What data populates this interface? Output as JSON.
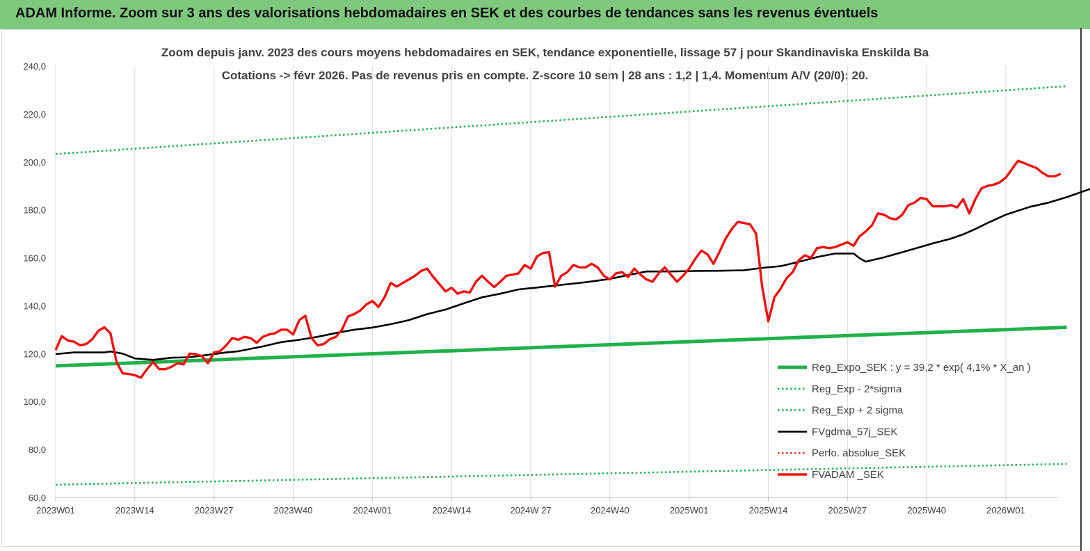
{
  "banner": {
    "title": "ADAM Informe. Zoom sur 3 ans des valorisations hebdomadaires en SEK et des courbes de tendances sans les revenus éventuels"
  },
  "chart_data": {
    "type": "line",
    "title": "Zoom depuis janv. 2023 des cours moyens hebdomadaires en SEK, tendance exponentielle, lissage 57 j pour Skandinaviska Enskilda Ba",
    "subtitle": "Cotations -> févr 2026. Pas de revenus pris en compte. Z-score 10 sem | 28 ans : 1,2 | 1,4. Momentum A/V (20/0): 20.",
    "xlabel": "",
    "ylabel": "",
    "ylim": [
      60,
      240
    ],
    "yticks": [
      "60,0",
      "80,0",
      "100,0",
      "120,0",
      "140,0",
      "160,0",
      "180,0",
      "200,0",
      "220,0",
      "240,0"
    ],
    "xticks": [
      "2023W01",
      "2023W14",
      "2023W27",
      "2023W40",
      "2024W01",
      "2024W14",
      "2024W 27",
      "2024W40",
      "2025W01",
      "2025W14",
      "2025W27",
      "2025W40",
      "2026W01"
    ],
    "weeks_total": 166,
    "grid": "vertical",
    "legend_position": "right",
    "series": [
      {
        "name": "Reg_Expo_SEK : y = 39,2 * exp( 4,1% *  X_an )",
        "color": "#21b14b",
        "style": "thick",
        "values": [
          [
            0,
            114.9
          ],
          [
            166,
            131.0
          ]
        ]
      },
      {
        "name": "Reg_Exp - 2*sigma",
        "color": "#21b14b",
        "style": "dotted",
        "values": [
          [
            0,
            65.3
          ],
          [
            166,
            74.0
          ]
        ]
      },
      {
        "name": "Reg_Exp + 2 sigma",
        "color": "#21b14b",
        "style": "dotted",
        "values": [
          [
            0,
            203.3
          ],
          [
            166,
            231.6
          ]
        ]
      },
      {
        "name": "FVgdma_57j_SEK",
        "color": "#000000",
        "style": "solid",
        "values": [
          [
            0,
            119.8
          ],
          [
            3,
            120.5
          ],
          [
            6,
            120.5
          ],
          [
            7,
            120.5
          ],
          [
            8,
            120.5
          ],
          [
            9,
            120.9
          ],
          [
            11,
            120.0
          ],
          [
            13,
            118.0
          ],
          [
            16,
            117.4
          ],
          [
            19,
            118.3
          ],
          [
            22,
            118.5
          ],
          [
            25,
            119.5
          ],
          [
            28,
            120.5
          ],
          [
            30,
            121.0
          ],
          [
            32,
            122.0
          ],
          [
            34,
            123.0
          ],
          [
            37,
            124.8
          ],
          [
            40,
            125.8
          ],
          [
            43,
            127.0
          ],
          [
            46,
            128.6
          ],
          [
            49,
            130.0
          ],
          [
            52,
            130.9
          ],
          [
            55,
            132.3
          ],
          [
            58,
            134.0
          ],
          [
            61,
            136.5
          ],
          [
            64,
            138.4
          ],
          [
            67,
            141.0
          ],
          [
            70,
            143.5
          ],
          [
            73,
            145.0
          ],
          [
            76,
            146.8
          ],
          [
            79,
            147.6
          ],
          [
            83,
            148.7
          ],
          [
            87,
            149.8
          ],
          [
            91,
            151.2
          ],
          [
            94,
            152.8
          ],
          [
            97,
            154.3
          ],
          [
            101,
            154.3
          ],
          [
            105,
            154.5
          ],
          [
            109,
            154.6
          ],
          [
            113,
            154.8
          ],
          [
            116,
            155.8
          ],
          [
            119,
            156.5
          ],
          [
            122,
            158.3
          ],
          [
            125,
            160.3
          ],
          [
            128,
            161.8
          ],
          [
            131,
            161.8
          ],
          [
            132,
            159.8
          ],
          [
            133,
            158.4
          ],
          [
            136,
            160.2
          ],
          [
            138,
            161.6
          ],
          [
            141,
            163.8
          ],
          [
            144,
            166.0
          ],
          [
            147,
            168.0
          ],
          [
            149,
            169.8
          ],
          [
            151,
            172.0
          ],
          [
            153,
            174.5
          ],
          [
            156,
            178.0
          ],
          [
            160,
            181.3
          ],
          [
            163,
            183.0
          ],
          [
            166,
            185.3
          ],
          [
            170,
            188.9
          ],
          [
            173,
            191.0
          ],
          [
            175,
            193.0
          ],
          [
            177,
            193.3
          ],
          [
            179,
            193.3
          ],
          [
            181,
            193.3
          ],
          [
            183,
            193.5
          ]
        ]
      },
      {
        "name": "Perfo. absolue_SEK",
        "color": "#e03030",
        "style": "dotted",
        "values": []
      },
      {
        "name": "FVADAM _SEK",
        "color": "#ee1111",
        "style": "solid",
        "values": [
          [
            0,
            121.5
          ],
          [
            1,
            127.3
          ],
          [
            2,
            125.5
          ],
          [
            3,
            125.0
          ],
          [
            4,
            123.5
          ],
          [
            5,
            124.0
          ],
          [
            6,
            126.0
          ],
          [
            7,
            129.5
          ],
          [
            8,
            131.0
          ],
          [
            9,
            128.5
          ],
          [
            10,
            116.5
          ],
          [
            11,
            111.8
          ],
          [
            12,
            111.5
          ],
          [
            13,
            111.0
          ],
          [
            14,
            110.0
          ],
          [
            15,
            113.5
          ],
          [
            16,
            116.5
          ],
          [
            17,
            113.5
          ],
          [
            18,
            113.5
          ],
          [
            19,
            114.5
          ],
          [
            20,
            116.0
          ],
          [
            21,
            115.5
          ],
          [
            22,
            120.0
          ],
          [
            23,
            119.8
          ],
          [
            24,
            119.0
          ],
          [
            25,
            116.0
          ],
          [
            26,
            120.5
          ],
          [
            27,
            121.0
          ],
          [
            28,
            123.5
          ],
          [
            29,
            126.5
          ],
          [
            30,
            125.8
          ],
          [
            31,
            127.0
          ],
          [
            32,
            126.5
          ],
          [
            33,
            124.5
          ],
          [
            34,
            127.0
          ],
          [
            35,
            128.0
          ],
          [
            36,
            128.5
          ],
          [
            37,
            130.0
          ],
          [
            38,
            130.0
          ],
          [
            39,
            128.0
          ],
          [
            40,
            134.0
          ],
          [
            41,
            135.8
          ],
          [
            42,
            126.5
          ],
          [
            43,
            123.5
          ],
          [
            44,
            124.0
          ],
          [
            45,
            126.0
          ],
          [
            46,
            127.0
          ],
          [
            47,
            130.0
          ],
          [
            48,
            135.5
          ],
          [
            49,
            136.5
          ],
          [
            50,
            138.0
          ],
          [
            51,
            140.5
          ],
          [
            52,
            142.0
          ],
          [
            53,
            139.5
          ],
          [
            54,
            143.5
          ],
          [
            55,
            149.5
          ],
          [
            56,
            148.0
          ],
          [
            57,
            149.5
          ],
          [
            58,
            151.0
          ],
          [
            59,
            152.5
          ],
          [
            60,
            154.5
          ],
          [
            61,
            155.5
          ],
          [
            62,
            152.0
          ],
          [
            63,
            149.0
          ],
          [
            64,
            146.0
          ],
          [
            65,
            147.5
          ],
          [
            66,
            145.0
          ],
          [
            67,
            146.0
          ],
          [
            68,
            145.5
          ],
          [
            69,
            150.0
          ],
          [
            70,
            152.5
          ],
          [
            71,
            150.0
          ],
          [
            72,
            147.8
          ],
          [
            73,
            150.0
          ],
          [
            74,
            152.5
          ],
          [
            75,
            153.0
          ],
          [
            76,
            153.5
          ],
          [
            77,
            157.0
          ],
          [
            78,
            155.5
          ],
          [
            79,
            160.5
          ],
          [
            80,
            162.0
          ],
          [
            81,
            162.3
          ],
          [
            82,
            148.0
          ],
          [
            83,
            152.5
          ],
          [
            84,
            154.0
          ],
          [
            85,
            157.0
          ],
          [
            86,
            156.0
          ],
          [
            87,
            156.0
          ],
          [
            88,
            157.5
          ],
          [
            89,
            156.0
          ],
          [
            90,
            152.5
          ],
          [
            91,
            151.0
          ],
          [
            92,
            153.5
          ],
          [
            93,
            154.0
          ],
          [
            94,
            152.0
          ],
          [
            95,
            155.5
          ],
          [
            96,
            153.0
          ],
          [
            97,
            151.0
          ],
          [
            98,
            150.0
          ],
          [
            99,
            153.5
          ],
          [
            100,
            156.0
          ],
          [
            101,
            153.0
          ],
          [
            102,
            150.0
          ],
          [
            103,
            152.5
          ],
          [
            104,
            155.5
          ],
          [
            105,
            159.5
          ],
          [
            106,
            163.0
          ],
          [
            107,
            161.5
          ],
          [
            108,
            157.5
          ],
          [
            109,
            162.5
          ],
          [
            110,
            168.0
          ],
          [
            111,
            172.0
          ],
          [
            112,
            175.0
          ],
          [
            113,
            174.5
          ],
          [
            114,
            174.0
          ],
          [
            115,
            170.0
          ],
          [
            116,
            148.0
          ],
          [
            117,
            133.5
          ],
          [
            118,
            143.5
          ],
          [
            119,
            147.0
          ],
          [
            120,
            151.5
          ],
          [
            121,
            154.0
          ],
          [
            122,
            159.0
          ],
          [
            123,
            161.0
          ],
          [
            124,
            160.0
          ],
          [
            125,
            164.0
          ],
          [
            126,
            164.5
          ],
          [
            127,
            164.0
          ],
          [
            128,
            164.5
          ],
          [
            129,
            165.5
          ],
          [
            130,
            166.5
          ],
          [
            131,
            165.0
          ],
          [
            132,
            169.0
          ],
          [
            133,
            171.0
          ],
          [
            134,
            173.5
          ],
          [
            135,
            178.5
          ],
          [
            136,
            178.0
          ],
          [
            137,
            176.5
          ],
          [
            138,
            176.0
          ],
          [
            139,
            178.0
          ],
          [
            140,
            182.0
          ],
          [
            141,
            183.0
          ],
          [
            142,
            185.0
          ],
          [
            143,
            184.5
          ],
          [
            144,
            181.5
          ],
          [
            145,
            181.5
          ],
          [
            146,
            181.5
          ],
          [
            147,
            182.0
          ],
          [
            148,
            181.0
          ],
          [
            149,
            184.5
          ],
          [
            150,
            178.5
          ],
          [
            151,
            184.5
          ],
          [
            152,
            189.0
          ],
          [
            153,
            190.0
          ],
          [
            154,
            190.5
          ],
          [
            155,
            191.5
          ],
          [
            156,
            193.5
          ],
          [
            157,
            197.0
          ],
          [
            158,
            200.5
          ],
          [
            159,
            199.5
          ],
          [
            160,
            198.5
          ],
          [
            161,
            197.5
          ],
          [
            162,
            195.5
          ],
          [
            163,
            194.0
          ],
          [
            164,
            194.0
          ],
          [
            165,
            195.0
          ]
        ]
      }
    ]
  }
}
